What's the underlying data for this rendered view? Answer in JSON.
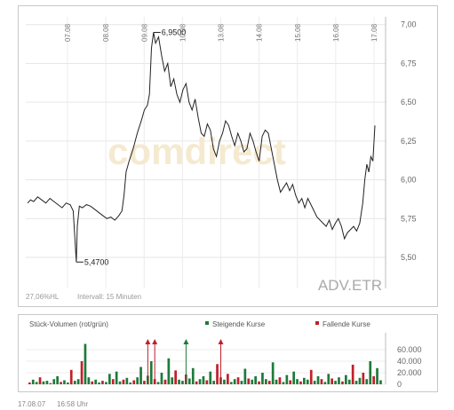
{
  "chart_data": [
    {
      "type": "line",
      "x_tick_labels": [
        "07.08",
        "08.08",
        "09.08",
        "10.08",
        "13.08",
        "14.08",
        "15.08",
        "16.08",
        "17.08"
      ],
      "y_ticks": [
        "7,00",
        "6,75",
        "6,50",
        "6,25",
        "6,00",
        "5,75",
        "5,50"
      ],
      "ylim": [
        5.3,
        7.05
      ],
      "grid": true,
      "watermark": "comdirect",
      "instrument": "ADV.ETR",
      "info_left": "27,06%HL",
      "info_interval": "Intervall: 15 Minuten",
      "annotations": [
        {
          "label": "5,4700",
          "value": 5.47
        },
        {
          "label": "6,9500",
          "value": 6.95
        }
      ],
      "series_color": "#222222",
      "price_points": [
        [
          0,
          5.85
        ],
        [
          1.5,
          5.87
        ],
        [
          3,
          5.86
        ],
        [
          5,
          5.89
        ],
        [
          7,
          5.87
        ],
        [
          9,
          5.85
        ],
        [
          11,
          5.88
        ],
        [
          13,
          5.86
        ],
        [
          15,
          5.84
        ],
        [
          17,
          5.82
        ],
        [
          19,
          5.85
        ],
        [
          21,
          5.84
        ],
        [
          22.5,
          5.8
        ],
        [
          24,
          5.47
        ],
        [
          24.5,
          5.7
        ],
        [
          25.5,
          5.83
        ],
        [
          27,
          5.82
        ],
        [
          29,
          5.84
        ],
        [
          31,
          5.83
        ],
        [
          33,
          5.81
        ],
        [
          35,
          5.79
        ],
        [
          37,
          5.77
        ],
        [
          39,
          5.75
        ],
        [
          41,
          5.76
        ],
        [
          43,
          5.74
        ],
        [
          45,
          5.77
        ],
        [
          46.5,
          5.8
        ],
        [
          47.5,
          5.9
        ],
        [
          48.5,
          6.05
        ],
        [
          50,
          6.12
        ],
        [
          52,
          6.2
        ],
        [
          54,
          6.3
        ],
        [
          56,
          6.38
        ],
        [
          57.5,
          6.45
        ],
        [
          59,
          6.48
        ],
        [
          60,
          6.55
        ],
        [
          61,
          6.85
        ],
        [
          62,
          6.95
        ],
        [
          63,
          6.88
        ],
        [
          64.5,
          6.92
        ],
        [
          66,
          6.8
        ],
        [
          67.5,
          6.7
        ],
        [
          69,
          6.75
        ],
        [
          70.5,
          6.6
        ],
        [
          72,
          6.65
        ],
        [
          73.5,
          6.55
        ],
        [
          75,
          6.5
        ],
        [
          76.5,
          6.58
        ],
        [
          78,
          6.62
        ],
        [
          79.5,
          6.5
        ],
        [
          81,
          6.45
        ],
        [
          82.5,
          6.52
        ],
        [
          84,
          6.4
        ],
        [
          85.5,
          6.3
        ],
        [
          87,
          6.28
        ],
        [
          88.5,
          6.36
        ],
        [
          90,
          6.32
        ],
        [
          91.5,
          6.2
        ],
        [
          93,
          6.15
        ],
        [
          94.5,
          6.25
        ],
        [
          96,
          6.3
        ],
        [
          97.5,
          6.38
        ],
        [
          99,
          6.35
        ],
        [
          100.5,
          6.28
        ],
        [
          102,
          6.22
        ],
        [
          103.5,
          6.3
        ],
        [
          105,
          6.25
        ],
        [
          106.5,
          6.18
        ],
        [
          108,
          6.2
        ],
        [
          109.5,
          6.3
        ],
        [
          111,
          6.25
        ],
        [
          112.5,
          6.18
        ],
        [
          114,
          6.12
        ],
        [
          115.5,
          6.28
        ],
        [
          117,
          6.32
        ],
        [
          118.5,
          6.3
        ],
        [
          120,
          6.2
        ],
        [
          121.5,
          6.1
        ],
        [
          123,
          6.0
        ],
        [
          124.5,
          5.92
        ],
        [
          126,
          5.95
        ],
        [
          127.5,
          5.98
        ],
        [
          129,
          5.93
        ],
        [
          130.5,
          5.97
        ],
        [
          132,
          5.9
        ],
        [
          133.5,
          5.85
        ],
        [
          135,
          5.88
        ],
        [
          136.5,
          5.82
        ],
        [
          138,
          5.88
        ],
        [
          139.5,
          5.84
        ],
        [
          141,
          5.8
        ],
        [
          142.5,
          5.76
        ],
        [
          144,
          5.74
        ],
        [
          145.5,
          5.72
        ],
        [
          147,
          5.7
        ],
        [
          148.5,
          5.74
        ],
        [
          150,
          5.68
        ],
        [
          151.5,
          5.72
        ],
        [
          153,
          5.75
        ],
        [
          154.5,
          5.7
        ],
        [
          156,
          5.62
        ],
        [
          157.5,
          5.66
        ],
        [
          159,
          5.68
        ],
        [
          160.5,
          5.7
        ],
        [
          162,
          5.67
        ],
        [
          163.5,
          5.72
        ],
        [
          165,
          5.85
        ],
        [
          166,
          6.0
        ],
        [
          167,
          6.1
        ],
        [
          168,
          6.05
        ],
        [
          169,
          6.15
        ],
        [
          170,
          6.12
        ],
        [
          171,
          6.35
        ]
      ]
    },
    {
      "type": "bar",
      "title": "Stück-Volumen (rot/grün)",
      "legend": [
        {
          "label": "Steigende Kurse",
          "color": "#1e7a3a"
        },
        {
          "label": "Fallende Kurse",
          "color": "#c0202a"
        }
      ],
      "y_ticks": [
        "60.000",
        "40.000",
        "20.000",
        "0"
      ],
      "ylim": [
        0,
        80000
      ],
      "up_color": "#1e7a3a",
      "down_color": "#c0202a",
      "volumes": [
        3000,
        8000,
        4000,
        12000,
        5000,
        6000,
        2000,
        9000,
        14000,
        4000,
        7000,
        3000,
        25000,
        6000,
        9000,
        40000,
        70000,
        12000,
        5000,
        8000,
        3000,
        6000,
        4000,
        18000,
        9000,
        22000,
        5000,
        8000,
        11000,
        3000,
        7000,
        12000,
        30000,
        6000,
        15000,
        40000,
        9000,
        4000,
        20000,
        8000,
        45000,
        12000,
        24000,
        8000,
        6000,
        17000,
        10000,
        28000,
        5000,
        9000,
        14000,
        7000,
        22000,
        6000,
        35000,
        12000,
        8000,
        18000,
        4000,
        9000,
        12000,
        6000,
        27000,
        10000,
        8000,
        14000,
        5000,
        20000,
        9000,
        6000,
        38000,
        8000,
        12000,
        4000,
        16000,
        7000,
        22000,
        9000,
        5000,
        11000,
        8000,
        25000,
        6000,
        14000,
        9000,
        4000,
        18000,
        10000,
        6000,
        12000,
        5000,
        16000,
        8000,
        34000,
        6000,
        11000,
        20000,
        9000,
        40000,
        14000,
        28000,
        7000
      ],
      "markers": [
        {
          "index": 34,
          "color": "#c0202a"
        },
        {
          "index": 36,
          "color": "#c0202a"
        },
        {
          "index": 45,
          "color": "#1e7a3a"
        },
        {
          "index": 55,
          "color": "#c0202a"
        }
      ]
    }
  ],
  "footer": {
    "date": "17.08.07",
    "time": "16:58 Uhr"
  }
}
